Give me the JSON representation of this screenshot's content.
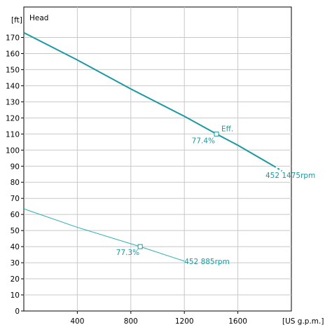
{
  "chart_data": {
    "type": "line",
    "title": "Head",
    "y_unit": "[ft]",
    "x_unit": "[US g.p.m.]",
    "xlim": [
      0,
      2000
    ],
    "ylim": [
      0,
      180
    ],
    "x_ticks": [
      400,
      800,
      1200,
      1600
    ],
    "x_tick_labels": [
      "400",
      "800",
      "1200",
      "1600"
    ],
    "y_ticks": [
      0,
      10,
      20,
      30,
      40,
      50,
      60,
      70,
      80,
      90,
      100,
      110,
      120,
      130,
      140,
      150,
      160,
      170
    ],
    "y_tick_labels": [
      "0",
      "10",
      "20",
      "30",
      "40",
      "50",
      "60",
      "70",
      "80",
      "90",
      "100",
      "110",
      "120",
      "130",
      "140",
      "150",
      "160",
      "170"
    ],
    "grid": true,
    "series": [
      {
        "name": "452 1475rpm",
        "x": [
          0,
          400,
          800,
          1200,
          1440,
          1600,
          1870
        ],
        "y": [
          173,
          156,
          138,
          121,
          110,
          103,
          90
        ],
        "dashed_extension": {
          "x": [
            1870,
            1930
          ],
          "y": [
            90,
            87
          ]
        },
        "color": "#1a9aa0"
      },
      {
        "name": "452 885rpm",
        "x": [
          0,
          400,
          870,
          1200
        ],
        "y": [
          63.5,
          52,
          40,
          31
        ],
        "color": "#2aaeb0"
      }
    ],
    "annotations": [
      {
        "text": "Eff.",
        "x": 1440,
        "y": 110
      },
      {
        "text": "77.4%",
        "x": 1440,
        "y": 110
      },
      {
        "text": "77.3%",
        "x": 870,
        "y": 40
      }
    ]
  }
}
